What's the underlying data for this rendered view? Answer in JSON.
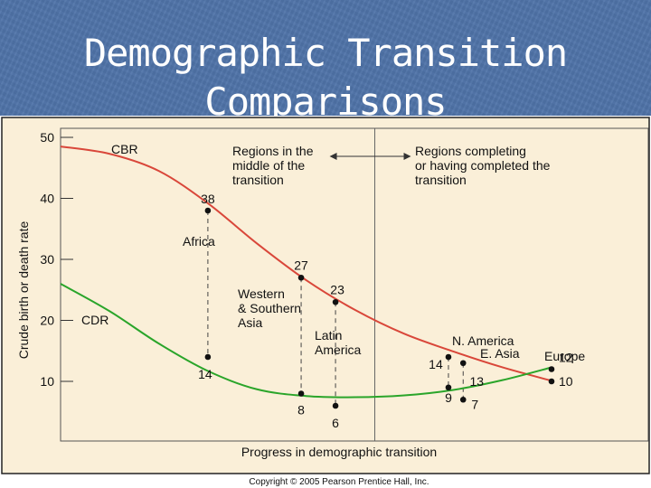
{
  "slide": {
    "title_line1": "Demographic Transition",
    "title_line2": "Comparisons",
    "copyright": "Copyright © 2005 Pearson Prentice Hall, Inc."
  },
  "colors": {
    "background": "#4f73a8",
    "plot_background": "#faefd8",
    "cbr_line": "#d9473a",
    "cdr_line": "#2aa52a"
  },
  "chart_data": {
    "type": "line",
    "title": "",
    "xlabel": "Progress in demographic transition",
    "ylabel": "Crude birth or death rate",
    "ylim": [
      5,
      50
    ],
    "yticks": [
      10,
      20,
      30,
      40,
      50
    ],
    "grid": false,
    "series": [
      {
        "name": "CBR",
        "curve": [
          [
            0,
            48.5
          ],
          [
            10,
            47.3
          ],
          [
            20,
            44.5
          ],
          [
            30,
            39.2
          ],
          [
            40,
            32.6
          ],
          [
            50,
            26.6
          ],
          [
            60,
            21.7
          ],
          [
            70,
            17.8
          ],
          [
            80,
            14.9
          ],
          [
            90,
            12.3
          ],
          [
            100,
            10.1
          ]
        ]
      },
      {
        "name": "CDR",
        "curve": [
          [
            0,
            26.0
          ],
          [
            10,
            21.5
          ],
          [
            20,
            16.2
          ],
          [
            30,
            11.7
          ],
          [
            40,
            8.7
          ],
          [
            50,
            7.6
          ],
          [
            60,
            7.4
          ],
          [
            70,
            7.7
          ],
          [
            80,
            8.6
          ],
          [
            90,
            10.2
          ],
          [
            100,
            12.3
          ]
        ]
      }
    ],
    "regions": [
      {
        "name": "Africa",
        "x": 30,
        "cbr": 38,
        "cdr": 14
      },
      {
        "name": "Western & Southern Asia",
        "x": 49,
        "cbr": 27,
        "cdr": 8
      },
      {
        "name": "Latin America",
        "x": 56,
        "cbr": 23,
        "cdr": 6
      },
      {
        "name": "N. America",
        "x": 79,
        "cbr": 14,
        "cdr": 9
      },
      {
        "name": "E. Asia",
        "x": 82,
        "cbr": 13,
        "cdr": 7
      },
      {
        "name": "Europe",
        "x": 100,
        "cbr": 10,
        "cdr": 12
      }
    ],
    "annotations": {
      "cbr": "CBR",
      "cdr": "CDR",
      "middle": [
        "Regions in the",
        "middle of the",
        "transition"
      ],
      "completing": [
        "Regions completing",
        "or having completed the",
        "transition"
      ],
      "africa": "Africa",
      "western": [
        "Western",
        "& Southern",
        "Asia"
      ],
      "latin": [
        "Latin",
        "America"
      ],
      "namerica": "N. America",
      "easia": "E. Asia",
      "europe": "Europe"
    },
    "phase_divider_x": 64
  }
}
